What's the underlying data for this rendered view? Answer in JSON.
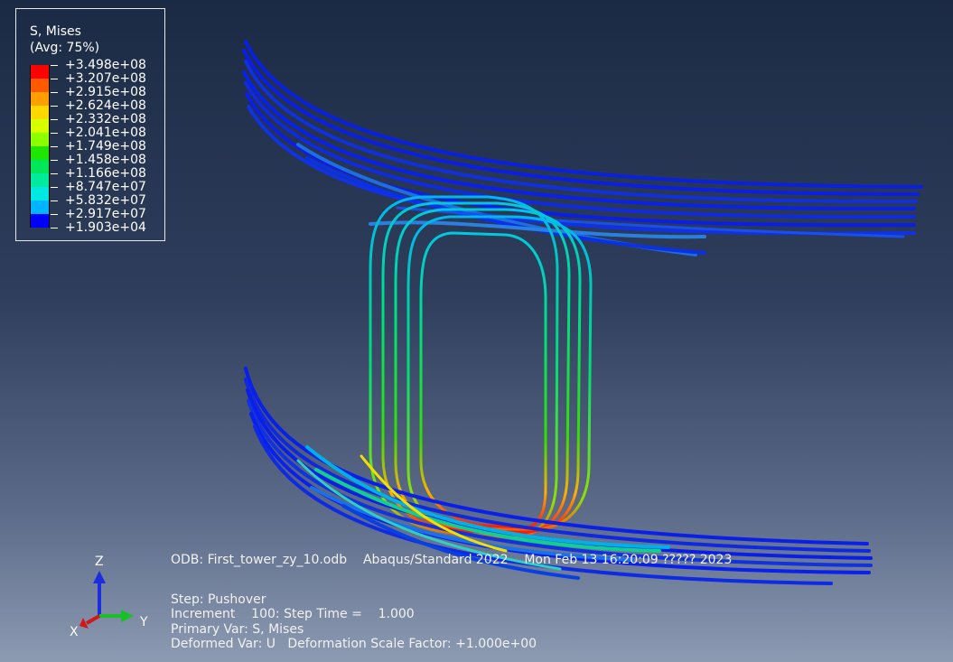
{
  "legend": {
    "title": "S, Mises",
    "subtitle": "(Avg: 75%)",
    "entries": [
      {
        "label": "+3.498e+08",
        "color": "#ff0000"
      },
      {
        "label": "+3.207e+08",
        "color": "#ff5a00"
      },
      {
        "label": "+2.915e+08",
        "color": "#ff9e00"
      },
      {
        "label": "+2.624e+08",
        "color": "#ffd800"
      },
      {
        "label": "+2.332e+08",
        "color": "#d6ff00"
      },
      {
        "label": "+2.041e+08",
        "color": "#8cff00"
      },
      {
        "label": "+1.749e+08",
        "color": "#1ee600"
      },
      {
        "label": "+1.458e+08",
        "color": "#00e85a"
      },
      {
        "label": "+1.166e+08",
        "color": "#00ec9c"
      },
      {
        "label": "+8.747e+07",
        "color": "#00e8e0"
      },
      {
        "label": "+5.832e+07",
        "color": "#00b4ff"
      },
      {
        "label": "+2.917e+07",
        "color": "#0064ff"
      },
      {
        "label": "+1.903e+04",
        "color": "#0000ff"
      }
    ]
  },
  "info": {
    "odb_line": "ODB: First_tower_zy_10.odb    Abaqus/Standard 2022    Mon Feb 13 16:20:09 ????? 2023",
    "step": "Step: Pushover",
    "increment": "Increment    100: Step Time =    1.000",
    "primary_var": "Primary Var: S, Mises",
    "deformed_var": "Deformed Var: U   Deformation Scale Factor: +1.000e+00"
  },
  "triad": {
    "z": "Z",
    "y": "Y",
    "x": "X"
  },
  "colors": {
    "bg_top": "#1b2a44",
    "bg_bottom": "#8c9ab2",
    "beam_blue": "#0a1ee6"
  }
}
